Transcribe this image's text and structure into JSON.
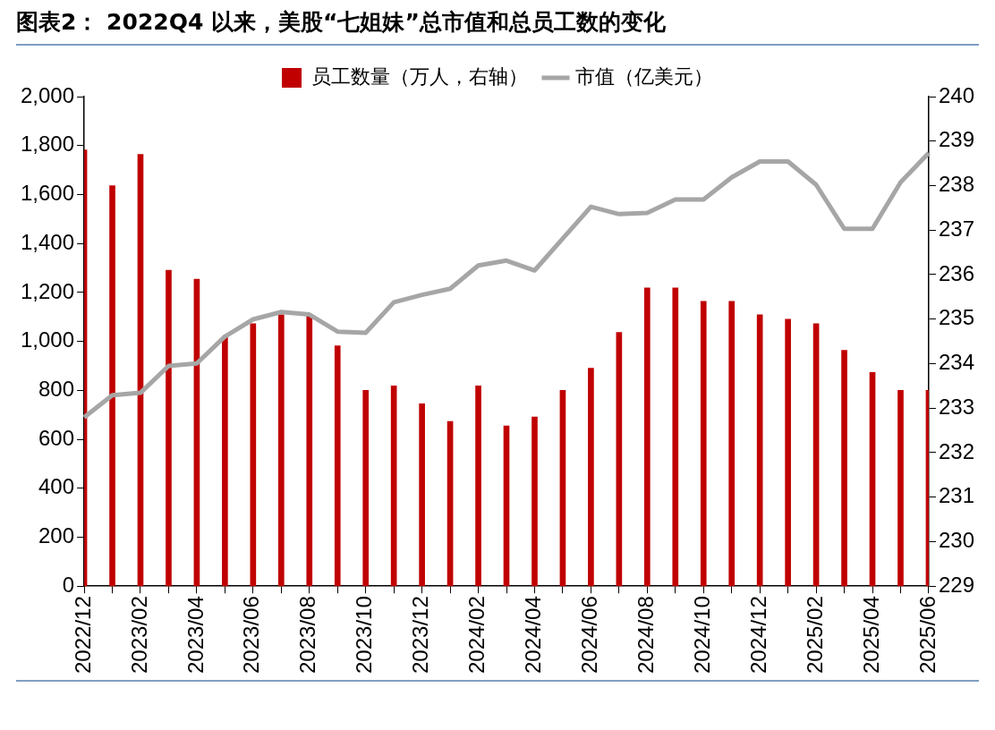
{
  "chart_data": {
    "type": "bar",
    "title": "图表2： 2022Q4 以来，美股“七姐妹”总市值和总员工数的变化",
    "categories": [
      "2022/12",
      null,
      "2023/02",
      null,
      "2023/04",
      null,
      "2023/06",
      null,
      "2023/08",
      null,
      "2023/10",
      null,
      "2023/12",
      null,
      "2024/02",
      null,
      "2024/04",
      null,
      "2024/06",
      null,
      "2024/08",
      null,
      "2024/10",
      null,
      "2024/12",
      null,
      "2025/02",
      null,
      "2025/04",
      null,
      "2025/06"
    ],
    "series": [
      {
        "name": "员工数量（万人，右轴）",
        "axis": "y2",
        "color": "#c00000",
        "values": [
          238.8,
          238.0,
          238.7,
          236.1,
          235.9,
          234.6,
          234.9,
          235.1,
          235.1,
          234.4,
          233.4,
          233.5,
          233.1,
          232.7,
          233.5,
          232.6,
          232.8,
          233.4,
          233.9,
          234.7,
          235.7,
          235.7,
          235.4,
          235.4,
          235.1,
          235.0,
          234.9,
          234.3,
          233.8,
          233.4,
          233.4
        ]
      },
      {
        "name": "市值（亿美元）",
        "type": "line",
        "color": "#a6a6a6",
        "values": [
          690,
          780,
          790,
          900,
          910,
          1020,
          1090,
          1120,
          1110,
          1040,
          1035,
          1160,
          1190,
          1215,
          1310,
          1330,
          1290,
          1420,
          1550,
          1520,
          1525,
          1580,
          1580,
          1670,
          1735,
          1735,
          1640,
          1460,
          1460,
          1650,
          1770
        ]
      }
    ],
    "ylim": [
      0,
      2000
    ],
    "yticks": [
      0,
      200,
      400,
      600,
      800,
      {
        "value": 1000,
        "label": "1,000"
      },
      {
        "value": 1200,
        "label": "1,200"
      },
      {
        "value": 1400,
        "label": "1,400"
      },
      {
        "value": 1600,
        "label": "1,600"
      },
      {
        "value": 1800,
        "label": "1,800"
      },
      {
        "value": 2000,
        "label": "2,000"
      }
    ],
    "y2lim": [
      229,
      240
    ],
    "y2ticks": [
      229,
      230,
      231,
      232,
      233,
      234,
      235,
      236,
      237,
      238,
      239,
      240
    ],
    "grid": false,
    "legend": "top",
    "marker": "none"
  }
}
